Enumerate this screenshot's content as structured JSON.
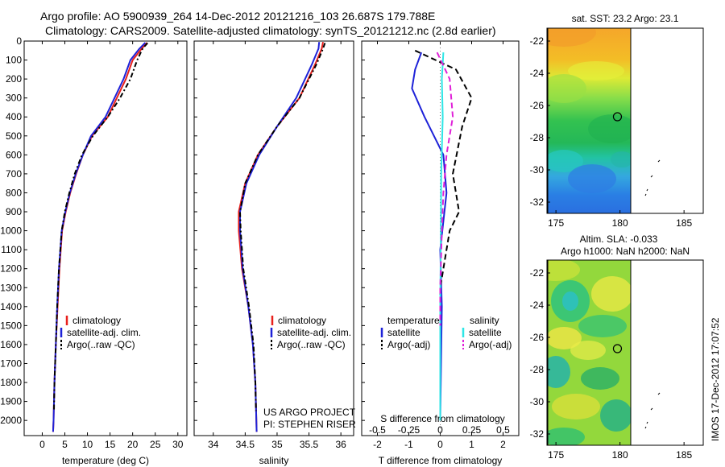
{
  "header": {
    "line1": "Argo profile: AO 5900939_264 14-Dec-2012 20121216_103 26.687S 179.788E",
    "line2": "Climatology: CARS2009. Satellite-adjusted climatology: synTS_20121212.nc (2.8d earlier)"
  },
  "colors": {
    "climatology": "#e8201c",
    "satellite": "#1e22d8",
    "argo": "#000000",
    "sal_satellite": "#2ee6e6",
    "sal_argo": "#e020d8"
  },
  "legend_temp": [
    "climatology",
    "satellite-adj. clim.",
    "Argo(..raw -QC)"
  ],
  "legend_diff": {
    "temperature_title": "temperature",
    "salinity_title": "salinity",
    "temperature_items": [
      "satellite",
      "Argo(-adj)"
    ],
    "salinity_items": [
      "satellite",
      "Argo(-adj)"
    ]
  },
  "annotations": {
    "project": "US ARGO PROJECT",
    "pi": "PI: STEPHEN RISER",
    "sst_title": "sat. SST: 23.2  Argo: 23.1",
    "sla_title_1": "Altim. SLA: -0.033",
    "sla_title_2": "Argo h1000: NaN h2000: NaN",
    "imos": "IMOS 17-Dec-2012 17:07:52"
  },
  "chart_data": [
    {
      "type": "line",
      "xlabel": "temperature (deg C)",
      "ylabel": "",
      "xlim": [
        -4,
        32
      ],
      "ylim": [
        2080,
        0
      ],
      "x_ticks": [
        0,
        5,
        10,
        15,
        20,
        25,
        30
      ],
      "y_ticks": [
        0,
        100,
        200,
        300,
        400,
        500,
        600,
        700,
        800,
        900,
        1000,
        1100,
        1200,
        1300,
        1400,
        1500,
        1600,
        1700,
        1800,
        1900,
        2000
      ],
      "y_ticks_labels": [
        "0",
        "100",
        "200",
        "300",
        "400",
        "500",
        "600",
        "700",
        "800",
        "900",
        "1000",
        "1100",
        "1200",
        "1300",
        "1400",
        "1500",
        "1600",
        "1700",
        "1800",
        "1900",
        "2000"
      ],
      "grid": false,
      "series": [
        {
          "name": "climatology",
          "color": "#e8201c",
          "dash": "solid",
          "points": [
            [
              23.2,
              8
            ],
            [
              22,
              40
            ],
            [
              20,
              100
            ],
            [
              18.5,
              200
            ],
            [
              16.5,
              300
            ],
            [
              14.5,
              400
            ],
            [
              11,
              500
            ],
            [
              9,
              600
            ],
            [
              7.5,
              700
            ],
            [
              6.2,
              800
            ],
            [
              5.2,
              900
            ],
            [
              4.4,
              1000
            ],
            [
              3.8,
              1200
            ],
            [
              3.4,
              1400
            ],
            [
              3.0,
              1600
            ],
            [
              2.7,
              1800
            ],
            [
              2.5,
              2000
            ],
            [
              2.4,
              2060
            ]
          ]
        },
        {
          "name": "satellite-adj. clim.",
          "color": "#1e22d8",
          "dash": "solid",
          "points": [
            [
              22.8,
              8
            ],
            [
              21.5,
              40
            ],
            [
              19.5,
              100
            ],
            [
              18.0,
              200
            ],
            [
              16.0,
              300
            ],
            [
              14.0,
              400
            ],
            [
              10.8,
              500
            ],
            [
              9,
              600
            ],
            [
              7.4,
              700
            ],
            [
              6.1,
              800
            ],
            [
              5.1,
              900
            ],
            [
              4.3,
              1000
            ],
            [
              3.7,
              1200
            ],
            [
              3.3,
              1400
            ],
            [
              3.0,
              1600
            ],
            [
              2.7,
              1800
            ],
            [
              2.5,
              2000
            ],
            [
              2.4,
              2060
            ]
          ]
        },
        {
          "name": "Argo(..raw -QC)",
          "color": "#000000",
          "dash": "6,3,2,3",
          "points": [
            [
              23.3,
              10
            ],
            [
              22.2,
              40
            ],
            [
              21,
              100
            ],
            [
              19.5,
              200
            ],
            [
              17.2,
              300
            ],
            [
              14.5,
              400
            ],
            [
              11.2,
              500
            ],
            [
              8.8,
              600
            ],
            [
              7.2,
              700
            ],
            [
              6.0,
              800
            ],
            [
              5.0,
              900
            ],
            [
              4.3,
              1000
            ],
            [
              3.7,
              1200
            ],
            [
              3.3,
              1400
            ],
            [
              3.0,
              1600
            ],
            [
              2.7,
              1800
            ],
            [
              2.6,
              1950
            ]
          ]
        }
      ]
    },
    {
      "type": "line",
      "xlabel": "salinity",
      "ylabel": "",
      "xlim": [
        33.7,
        36.2
      ],
      "ylim": [
        2080,
        0
      ],
      "x_ticks": [
        34,
        34.5,
        35,
        35.5,
        36
      ],
      "grid": false,
      "series": [
        {
          "name": "climatology",
          "color": "#e8201c",
          "dash": "solid",
          "points": [
            [
              35.72,
              5
            ],
            [
              35.7,
              40
            ],
            [
              35.6,
              120
            ],
            [
              35.35,
              300
            ],
            [
              35.0,
              450
            ],
            [
              34.7,
              600
            ],
            [
              34.5,
              750
            ],
            [
              34.4,
              900
            ],
            [
              34.4,
              1000
            ],
            [
              34.45,
              1200
            ],
            [
              34.55,
              1400
            ],
            [
              34.62,
              1600
            ],
            [
              34.66,
              1800
            ],
            [
              34.68,
              2060
            ]
          ]
        },
        {
          "name": "satellite-adj. clim.",
          "color": "#1e22d8",
          "dash": "solid",
          "points": [
            [
              35.66,
              5
            ],
            [
              35.65,
              40
            ],
            [
              35.55,
              120
            ],
            [
              35.3,
              300
            ],
            [
              35.0,
              450
            ],
            [
              34.72,
              600
            ],
            [
              34.52,
              750
            ],
            [
              34.42,
              900
            ],
            [
              34.42,
              1000
            ],
            [
              34.46,
              1200
            ],
            [
              34.55,
              1400
            ],
            [
              34.62,
              1600
            ],
            [
              34.66,
              1800
            ],
            [
              34.68,
              2060
            ]
          ]
        },
        {
          "name": "Argo(..raw -QC)",
          "color": "#000000",
          "dash": "6,3,2,3",
          "points": [
            [
              35.75,
              10
            ],
            [
              35.72,
              40
            ],
            [
              35.62,
              120
            ],
            [
              35.35,
              300
            ],
            [
              35.0,
              450
            ],
            [
              34.7,
              600
            ],
            [
              34.5,
              750
            ],
            [
              34.42,
              900
            ],
            [
              34.43,
              1000
            ],
            [
              34.47,
              1200
            ],
            [
              34.56,
              1400
            ],
            [
              34.63,
              1600
            ],
            [
              34.66,
              1800
            ],
            [
              34.67,
              1950
            ]
          ]
        }
      ]
    },
    {
      "type": "line",
      "xlabel": "T difference from climatology",
      "x2label": "S difference from climatology",
      "xlim": [
        -2.5,
        2.5
      ],
      "ylim": [
        2080,
        0
      ],
      "x_ticks": [
        -2,
        -1,
        0,
        1,
        2
      ],
      "x2_ticks": [
        -0.5,
        -0.25,
        0,
        0.25,
        0.5
      ],
      "x2_ticks_labels": [
        "-0.5",
        "-0.25",
        "0",
        "0.25",
        "0.5"
      ],
      "grid": false,
      "series": [
        {
          "name": "temperature satellite",
          "color": "#1e22d8",
          "dash": "solid",
          "points": [
            [
              -0.6,
              60
            ],
            [
              -0.8,
              150
            ],
            [
              -0.9,
              250
            ],
            [
              -0.5,
              400
            ],
            [
              0.1,
              600
            ],
            [
              0.2,
              800
            ],
            [
              0.0,
              1100
            ],
            [
              0.05,
              1400
            ],
            [
              0.0,
              2000
            ]
          ]
        },
        {
          "name": "temperature Argo(-adj)",
          "color": "#000000",
          "dash": "7,4",
          "points": [
            [
              -0.8,
              50
            ],
            [
              0.5,
              150
            ],
            [
              1.0,
              300
            ],
            [
              0.7,
              450
            ],
            [
              0.4,
              700
            ],
            [
              0.6,
              900
            ],
            [
              0.3,
              1000
            ],
            [
              0.0,
              1300
            ],
            [
              0.0,
              1500
            ]
          ]
        },
        {
          "name": "salinity satellite",
          "color": "#2ee6e6",
          "dash": "solid",
          "points": [
            [
              0.1,
              60
            ],
            [
              0.05,
              200
            ],
            [
              0.08,
              400
            ],
            [
              0.03,
              700
            ],
            [
              0.02,
              1000
            ],
            [
              0.0,
              1400
            ],
            [
              0.0,
              2000
            ]
          ]
        },
        {
          "name": "salinity Argo(-adj)",
          "color": "#e020d8",
          "dash": "7,4",
          "points": [
            [
              -0.1,
              60
            ],
            [
              0.3,
              200
            ],
            [
              0.4,
              400
            ],
            [
              0.2,
              600
            ],
            [
              0.1,
              800
            ],
            [
              0.05,
              1000
            ],
            [
              0.0,
              1300
            ],
            [
              0.0,
              1500
            ]
          ]
        }
      ]
    },
    {
      "type": "heatmap",
      "title": "sat. SST: 23.2  Argo: 23.1",
      "xlim": [
        174.3,
        186.5
      ],
      "ylim": [
        -32.7,
        -21.2
      ],
      "x_ticks": [
        175,
        180,
        185
      ],
      "y_ticks": [
        -22,
        -24,
        -26,
        -28,
        -30,
        -32
      ],
      "profile_marker": [
        179.8,
        -26.7
      ]
    },
    {
      "type": "heatmap",
      "title": "Altim. SLA: -0.033",
      "subtitle": "Argo h1000: NaN h2000: NaN",
      "xlim": [
        174.3,
        186.5
      ],
      "ylim": [
        -32.7,
        -21.2
      ],
      "x_ticks": [
        175,
        180,
        185
      ],
      "y_ticks": [
        -22,
        -24,
        -26,
        -28,
        -30,
        -32
      ],
      "profile_marker": [
        179.8,
        -26.7
      ]
    }
  ]
}
